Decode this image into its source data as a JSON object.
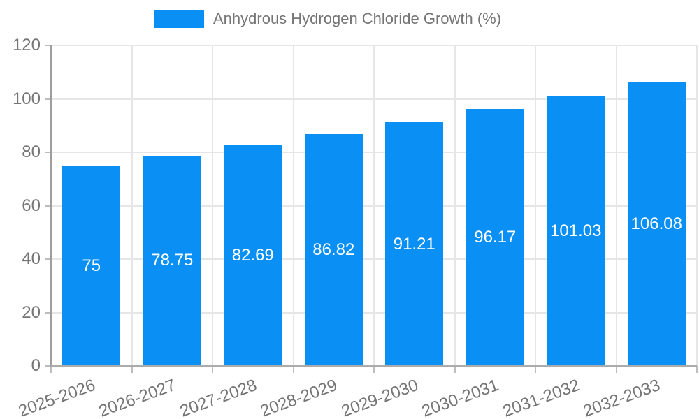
{
  "legend": {
    "label": "Anhydrous Hydrogen Chloride Growth (%)"
  },
  "chart_data": {
    "type": "bar",
    "title": "Anhydrous Hydrogen Chloride Growth (%)",
    "categories": [
      "2025-2026",
      "2026-2027",
      "2027-2028",
      "2028-2029",
      "2029-2030",
      "2030-2031",
      "2031-2032",
      "2032-2033"
    ],
    "values": [
      75,
      78.75,
      82.69,
      86.82,
      91.21,
      96.17,
      101.03,
      106.08
    ],
    "value_labels": [
      "75",
      "78.75",
      "82.69",
      "86.82",
      "91.21",
      "96.17",
      "101.03",
      "106.08"
    ],
    "xlabel": "",
    "ylabel": "",
    "ylim": [
      0,
      120
    ],
    "ytick_step": 20,
    "ytick_labels": [
      "0",
      "20",
      "40",
      "60",
      "80",
      "100",
      "120"
    ],
    "grid": true,
    "legend_position": "top-center"
  },
  "colors": {
    "bar": "#0a8ff4",
    "grid": "#e6e6e6",
    "axis_y": "#9e9e9e",
    "axis_x": "#ababab",
    "tick": "#bdbdbd",
    "text": "#757575",
    "bar_label": "#ffffff",
    "background": "#ffffff"
  }
}
